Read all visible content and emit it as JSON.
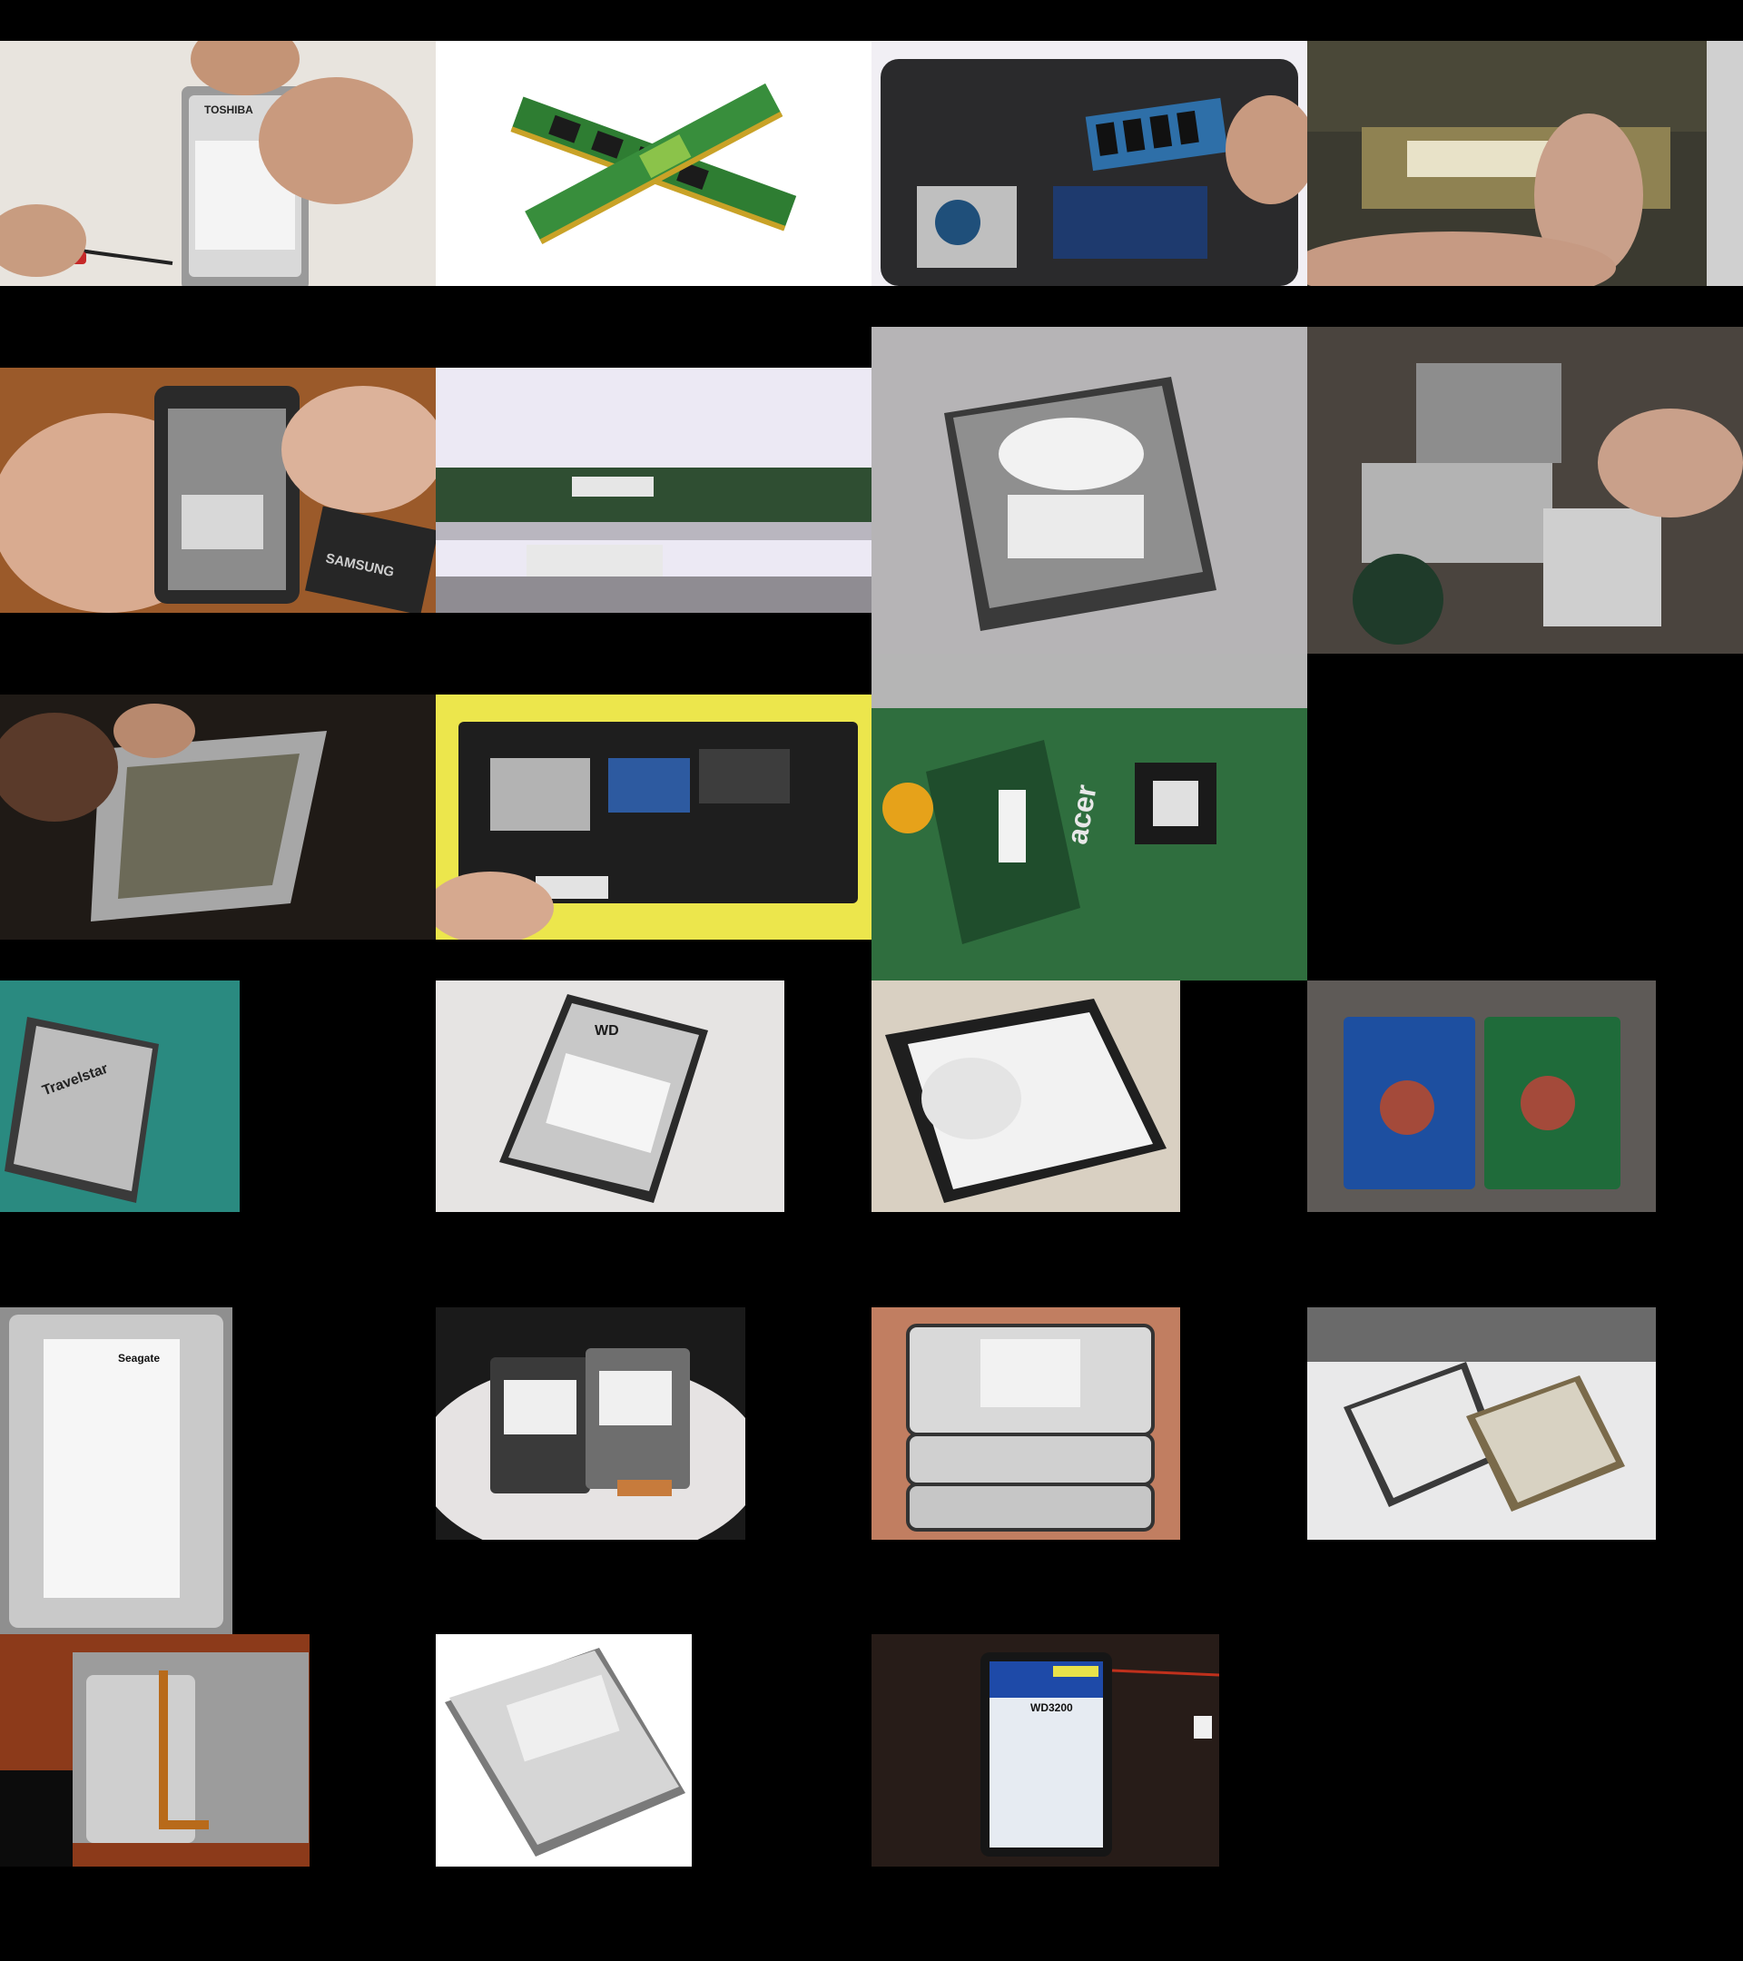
{
  "page": {
    "background": "#000000"
  },
  "tiles": [
    {
      "id": "t1",
      "subject": "laptop-hdd-screwdriver-hands",
      "label": "TOSHIBA"
    },
    {
      "id": "t2",
      "subject": "two-ram-sticks-crossed"
    },
    {
      "id": "t3",
      "subject": "laptop-underside-ram-hdd"
    },
    {
      "id": "t4",
      "subject": "macbook-ram-slot-finger"
    },
    {
      "id": "t5",
      "subject": "phone-open-in-hand-battery",
      "label": "SAMSUNG"
    },
    {
      "id": "t6",
      "subject": "lcd-panel-edge-board"
    },
    {
      "id": "t7",
      "subject": "desktop-hdd-gray-backdrop"
    },
    {
      "id": "t8",
      "subject": "drives-on-workbench"
    },
    {
      "id": "t9",
      "subject": "laptop-chassis-disassembly"
    },
    {
      "id": "t10",
      "subject": "laptop-bottom-yellow-mat"
    },
    {
      "id": "t11",
      "subject": "acer-motherboard-closeup",
      "label": "acer"
    },
    {
      "id": "t12",
      "subject": "travelstar-hdd-teal",
      "label": "Travelstar"
    },
    {
      "id": "t13",
      "subject": "wd-laptop-hdd",
      "label": "WD"
    },
    {
      "id": "t14",
      "subject": "seagate-laptop-hdd"
    },
    {
      "id": "t15",
      "subject": "two-hdd-pcbs-blue-green"
    },
    {
      "id": "t16",
      "subject": "seagate-barracuda-desktop-hdd",
      "label": "Seagate"
    },
    {
      "id": "t17",
      "subject": "two-laptop-hdds-on-cloth"
    },
    {
      "id": "t18",
      "subject": "stack-of-three-hdds"
    },
    {
      "id": "t19",
      "subject": "two-hdds-on-white-laptop"
    },
    {
      "id": "t20",
      "subject": "hdd-in-laptop-bay-orange"
    },
    {
      "id": "t21",
      "subject": "deskstar-hdd-white-bg"
    },
    {
      "id": "t22",
      "subject": "wd-caviar-hdd-dark",
      "label": "WD3200"
    }
  ]
}
